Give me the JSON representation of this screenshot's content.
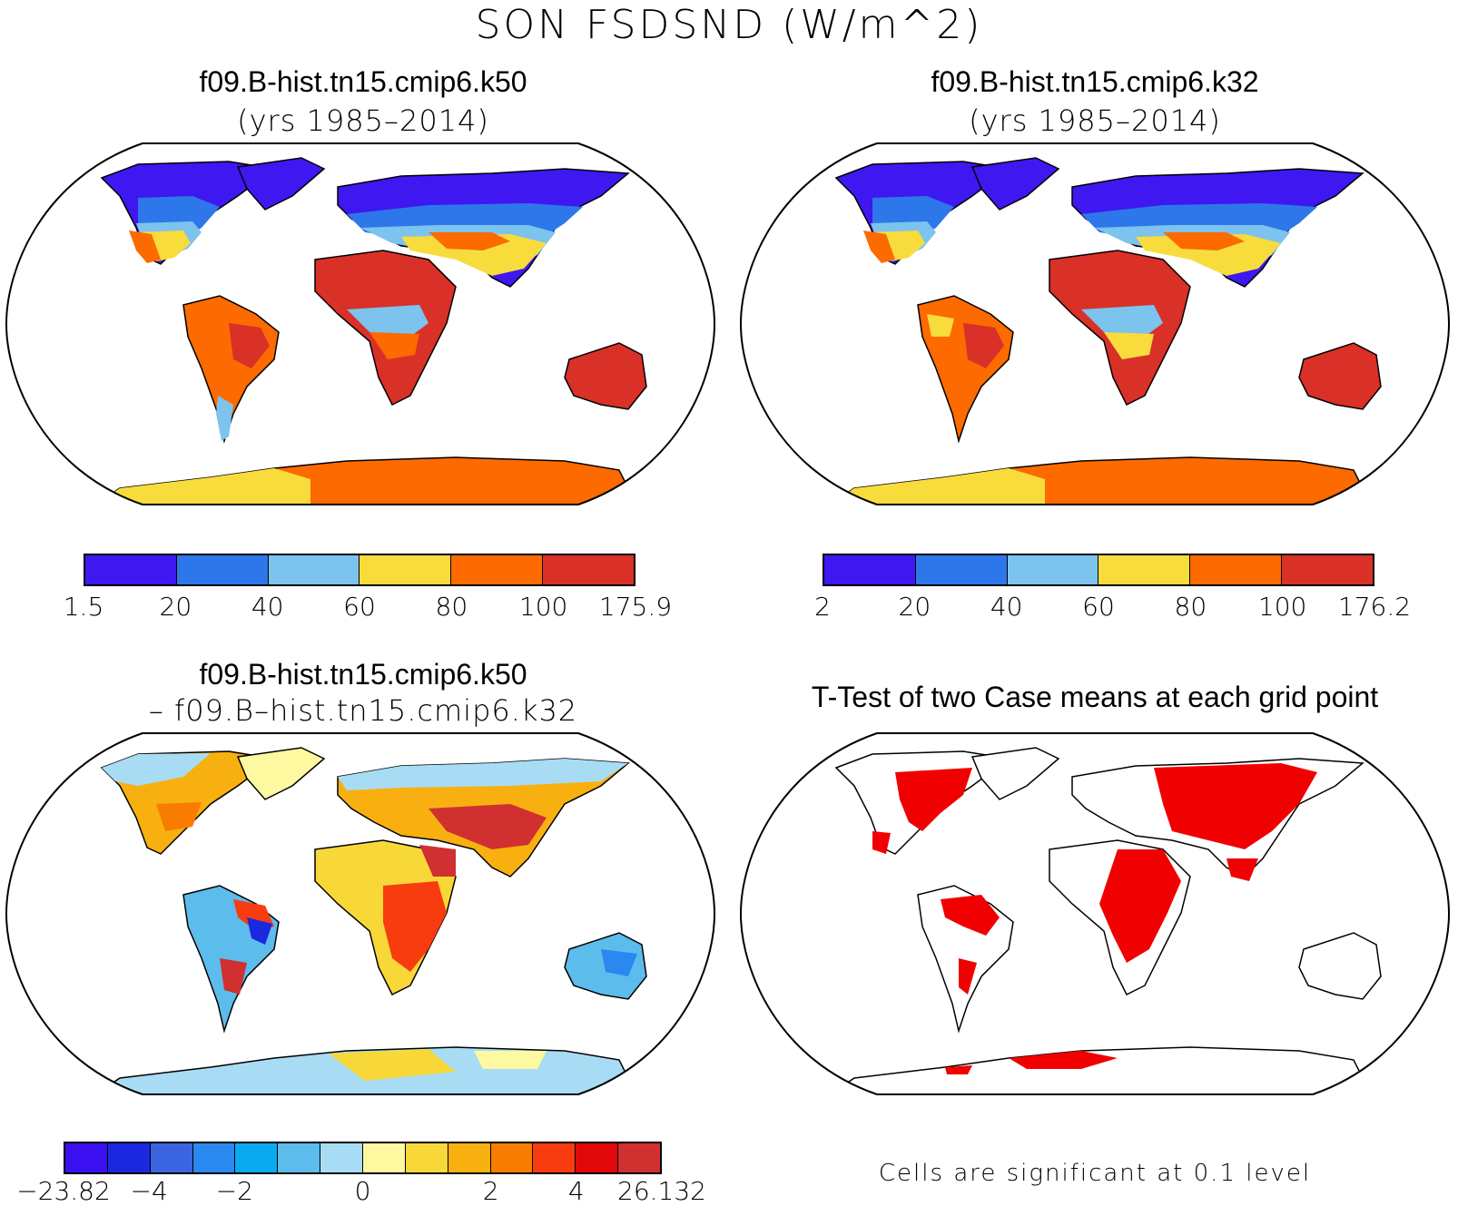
{
  "title": "SON FSDSND (W/m^2)",
  "panels": [
    {
      "id": "k50",
      "title": "f09.B-hist.tn15.cmip6.k50",
      "subtitle": "(yrs 1985–2014)",
      "colorbar": {
        "colors": [
          "#3f17f0",
          "#2d77ea",
          "#7cc3ee",
          "#f8dc3c",
          "#fc6a00",
          "#d93028"
        ],
        "labels": [
          "1.5",
          "20",
          "40",
          "60",
          "80",
          "100",
          "175.9"
        ]
      }
    },
    {
      "id": "k32",
      "title": "f09.B-hist.tn15.cmip6.k32",
      "subtitle": "(yrs 1985–2014)",
      "colorbar": {
        "colors": [
          "#3f17f0",
          "#2d77ea",
          "#7cc3ee",
          "#f8dc3c",
          "#fc6a00",
          "#d93028"
        ],
        "labels": [
          "2",
          "20",
          "40",
          "60",
          "80",
          "100",
          "176.2"
        ]
      }
    },
    {
      "id": "diff",
      "title": "f09.B-hist.tn15.cmip6.k50",
      "subtitle": "– f09.B–hist.tn15.cmip6.k32",
      "colorbar": {
        "colors": [
          "#3a10f0",
          "#1c28e0",
          "#3a64e0",
          "#2a88f0",
          "#0aaaf0",
          "#5cbcec",
          "#a8dcf4",
          "#fef8a0",
          "#f8d838",
          "#f8b010",
          "#f87c00",
          "#f83c10",
          "#e00808",
          "#d03030"
        ],
        "labels": [
          "−23.82",
          "−4",
          "−2",
          "0",
          "2",
          "4",
          "26.132"
        ]
      }
    },
    {
      "id": "ttest",
      "title": "T-Test of two Case means at each grid point",
      "note": "Cells are significant at 0.1 level",
      "sig_color": "#f00000"
    }
  ]
}
